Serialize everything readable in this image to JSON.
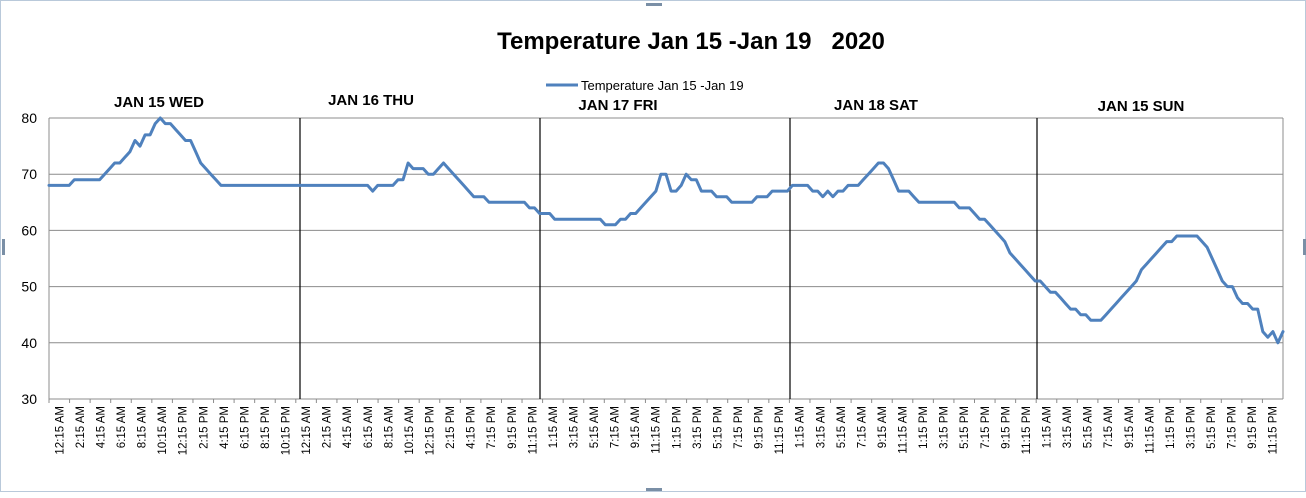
{
  "chart_data": {
    "type": "line",
    "title": "Temperature Jan 15 -Jan 19   2020",
    "xlabel": "",
    "ylabel": "",
    "ylim": [
      30,
      80
    ],
    "y_ticks": [
      30,
      40,
      50,
      60,
      70,
      80
    ],
    "grid": true,
    "legend_position": "top-center",
    "line_color": "#4f81bd",
    "day_labels": [
      "JAN   15  WED",
      "JAN   16  THU",
      "JAN   17  FRI",
      "JAN   18  SAT",
      "JAN   15  SUN"
    ],
    "x_tick_labels": [
      "12:15 AM",
      "2:15 AM",
      "4:15 AM",
      "6:15 AM",
      "8:15 AM",
      "10:15 AM",
      "12:15 PM",
      "2:15 PM",
      "4:15 PM",
      "6:15 PM",
      "8:15 PM",
      "10:15 PM",
      "12:15 AM",
      "2:15 AM",
      "4:15 AM",
      "6:15 AM",
      "8:15 AM",
      "10:15 AM",
      "12:15 PM",
      "2:15 PM",
      "4:15 PM",
      "7:15 PM",
      "9:15 PM",
      "11:15 PM",
      "1:15 AM",
      "3:15 AM",
      "5:15 AM",
      "7:15 AM",
      "9:15 AM",
      "11:15 AM",
      "1:15 PM",
      "3:15 PM",
      "5:15 PM",
      "7:15 PM",
      "9:15 PM",
      "11:15 PM",
      "1:15 AM",
      "3:15 AM",
      "5:15 AM",
      "7:15 AM",
      "9:15 AM",
      "11:15 AM",
      "1:15 PM",
      "3:15 PM",
      "5:15 PM",
      "7:15 PM",
      "9:15 PM",
      "11:15 PM",
      "1:15 AM",
      "3:15 AM",
      "5:15 AM",
      "7:15 AM",
      "9:15 AM",
      "11:15 AM",
      "1:15 PM",
      "3:15 PM",
      "5:15 PM",
      "7:15 PM",
      "9:15 PM",
      "11:15 PM"
    ],
    "series": [
      {
        "name": "Temperature Jan 15 -Jan 19",
        "values": [
          68,
          68,
          68,
          68,
          68,
          69,
          69,
          69,
          69,
          69,
          69,
          70,
          71,
          72,
          72,
          73,
          74,
          76,
          75,
          77,
          77,
          79,
          80,
          79,
          79,
          78,
          77,
          76,
          76,
          74,
          72,
          71,
          70,
          69,
          68,
          68,
          68,
          68,
          68,
          68,
          68,
          68,
          68,
          68,
          68,
          68,
          68,
          68,
          68,
          68,
          68,
          68,
          68,
          68,
          68,
          68,
          68,
          68,
          68,
          68,
          68,
          68,
          68,
          68,
          67,
          68,
          68,
          68,
          68,
          69,
          69,
          72,
          71,
          71,
          71,
          70,
          70,
          71,
          72,
          71,
          70,
          69,
          68,
          67,
          66,
          66,
          66,
          65,
          65,
          65,
          65,
          65,
          65,
          65,
          65,
          64,
          64,
          63,
          63,
          63,
          62,
          62,
          62,
          62,
          62,
          62,
          62,
          62,
          62,
          62,
          61,
          61,
          61,
          62,
          62,
          63,
          63,
          64,
          65,
          66,
          67,
          70,
          70,
          67,
          67,
          68,
          70,
          69,
          69,
          67,
          67,
          67,
          66,
          66,
          66,
          65,
          65,
          65,
          65,
          65,
          66,
          66,
          66,
          67,
          67,
          67,
          67,
          68,
          68,
          68,
          68,
          67,
          67,
          66,
          67,
          66,
          67,
          67,
          68,
          68,
          68,
          69,
          70,
          71,
          72,
          72,
          71,
          69,
          67,
          67,
          67,
          66,
          65,
          65,
          65,
          65,
          65,
          65,
          65,
          65,
          64,
          64,
          64,
          63,
          62,
          62,
          61,
          60,
          59,
          58,
          56,
          55,
          54,
          53,
          52,
          51,
          51,
          50,
          49,
          49,
          48,
          47,
          46,
          46,
          45,
          45,
          44,
          44,
          44,
          45,
          46,
          47,
          48,
          49,
          50,
          51,
          53,
          54,
          55,
          56,
          57,
          58,
          58,
          59,
          59,
          59,
          59,
          59,
          58,
          57,
          55,
          53,
          51,
          50,
          50,
          48,
          47,
          47,
          46,
          46,
          42,
          41,
          42,
          40,
          42
        ]
      }
    ]
  }
}
